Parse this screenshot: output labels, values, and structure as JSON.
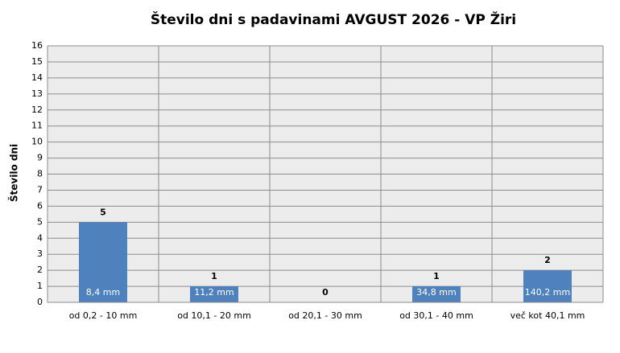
{
  "chart_data": {
    "type": "bar",
    "title": "Število dni s padavinami  AVGUST 2026 - VP Žiri",
    "y_label": "Število dni",
    "categories": [
      "od 0,2 - 10 mm",
      "od 10,1 - 20 mm",
      "od 20,1 - 30 mm",
      "od 30,1 - 40 mm",
      "več kot 40,1 mm"
    ],
    "values": [
      5,
      1,
      0,
      1,
      2
    ],
    "bar_labels": [
      "8,4 mm",
      "11,2 mm",
      null,
      "34,8 mm",
      "140,2 mm"
    ],
    "color": "#4f81bd",
    "ylim": [
      0,
      16
    ],
    "yticks": [
      0,
      1,
      2,
      3,
      4,
      5,
      6,
      7,
      8,
      9,
      10,
      11,
      12,
      13,
      14,
      15,
      16
    ],
    "grid": true
  }
}
